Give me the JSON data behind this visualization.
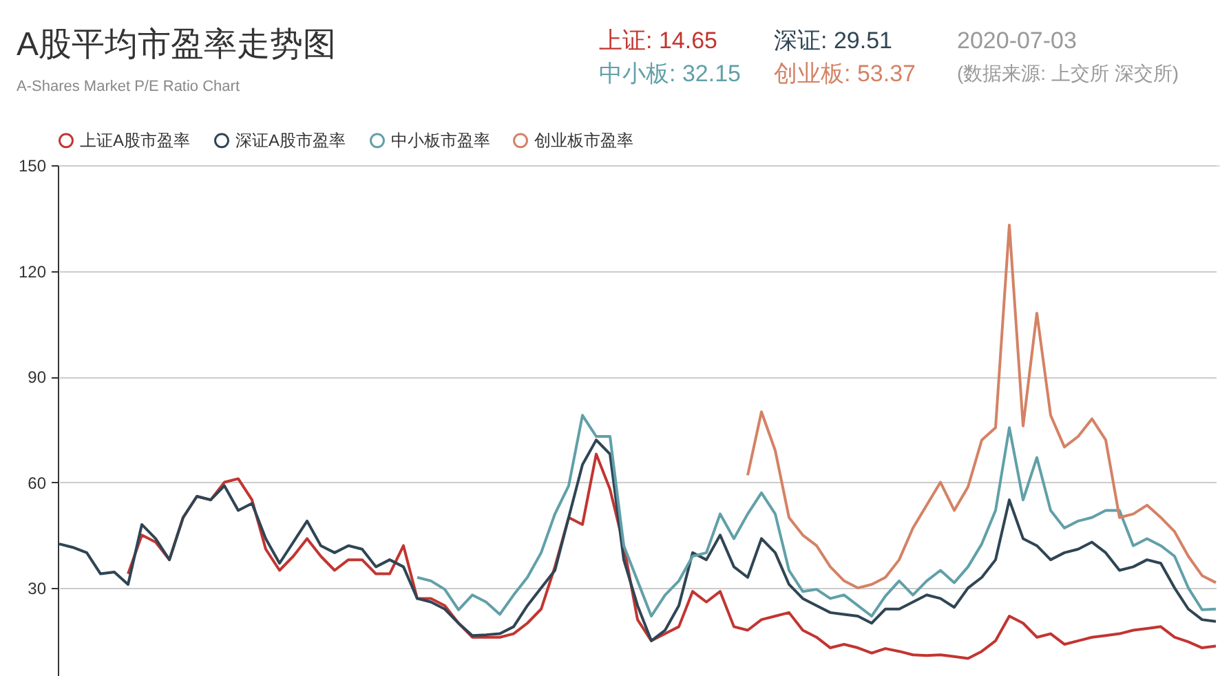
{
  "chart_data": {
    "type": "line",
    "title": "A股平均市盈率走势图",
    "subtitle": "A-Shares Market P/E Ratio Chart",
    "annotations": [
      "上证: 14.65",
      "深证: 29.51",
      "2020-07-03",
      "中小板: 32.15",
      "创业板: 53.37",
      "(数据来源: 上交所 深交所)"
    ],
    "categories": [
      null,
      null,
      null,
      null,
      null,
      null,
      null,
      null,
      null,
      null,
      null,
      null,
      null,
      null,
      null,
      null,
      null,
      null,
      null,
      null,
      null,
      null,
      null,
      null,
      null,
      null,
      null,
      null,
      null,
      null,
      null,
      null,
      null,
      null,
      null,
      null,
      null,
      null,
      null,
      null,
      null,
      null,
      null,
      null,
      null,
      null,
      null,
      null,
      null,
      null,
      null,
      null,
      null,
      null,
      null,
      null,
      null,
      null,
      null,
      null,
      null,
      null,
      null,
      null,
      null,
      null,
      null,
      null,
      null,
      null,
      null,
      null,
      null,
      null,
      null,
      null,
      null,
      null,
      null,
      null,
      null,
      null,
      null,
      null,
      null
    ],
    "ylim": [
      5,
      150
    ],
    "yticks": [
      30,
      60,
      90,
      120,
      150
    ],
    "grid": "y",
    "legend": "top",
    "line_style": "solid",
    "tick_labels": "y",
    "series": [
      {
        "name": "上证A股市盈率",
        "color": "#c23531",
        "values": [
          null,
          null,
          null,
          null,
          null,
          34,
          45,
          43,
          38,
          50,
          56,
          55,
          60,
          61,
          55,
          41,
          35,
          39,
          44,
          39,
          35,
          38,
          38,
          34,
          34,
          42,
          27,
          27,
          25,
          20,
          16,
          16,
          16,
          17,
          20,
          24,
          36,
          50,
          48,
          68,
          58,
          42,
          21,
          15,
          17,
          19,
          29,
          26,
          29,
          19,
          18,
          21,
          22,
          23,
          18,
          16,
          13,
          14,
          13,
          11.5,
          12.8,
          12,
          11,
          10.8,
          11,
          10.5,
          10,
          12,
          15,
          22,
          20,
          16,
          17,
          14,
          15,
          16,
          16.5,
          17,
          18,
          18.5,
          19,
          16,
          14.7,
          13,
          13.5
        ]
      },
      {
        "name": "深证A股市盈率",
        "color": "#2f4554",
        "values": [
          42.5,
          41.5,
          40,
          34,
          34.5,
          31,
          48,
          44,
          38,
          50,
          56,
          55,
          59,
          52,
          54,
          44,
          37,
          43,
          49,
          42,
          40,
          42,
          41,
          36,
          38,
          36,
          27,
          26,
          24,
          20,
          16.5,
          16.7,
          17,
          19,
          25,
          30,
          35,
          50,
          65,
          72,
          68,
          38,
          25,
          15,
          18,
          25,
          40,
          38,
          45,
          36,
          33,
          44,
          40,
          31,
          27,
          25,
          23,
          22.5,
          22,
          20,
          24,
          24,
          26,
          28,
          27,
          24.5,
          30,
          33,
          38,
          55,
          44,
          42,
          38,
          40,
          41,
          43,
          40,
          35,
          36,
          38,
          37,
          30,
          24,
          21,
          20.5
        ]
      },
      {
        "name": "中小板市盈率",
        "color": "#61a0a8",
        "values": [
          null,
          null,
          null,
          null,
          null,
          null,
          null,
          null,
          null,
          null,
          null,
          null,
          null,
          null,
          null,
          null,
          null,
          null,
          null,
          null,
          null,
          null,
          null,
          null,
          null,
          null,
          33,
          32,
          29.6,
          23.8,
          28,
          26,
          22.5,
          28,
          33,
          40,
          51,
          59,
          79,
          73,
          73,
          42,
          32,
          22,
          28,
          32,
          39,
          40,
          51,
          44,
          51,
          57,
          51,
          35,
          29,
          29.6,
          27,
          28,
          25,
          22,
          27.7,
          32,
          28,
          32,
          35,
          31.5,
          36,
          42.5,
          52,
          75.5,
          55,
          67,
          52,
          47,
          49,
          50,
          52,
          52,
          42,
          44,
          42,
          39,
          30,
          23.8,
          24
        ]
      },
      {
        "name": "创业板市盈率",
        "color": "#d48265",
        "values": [
          null,
          null,
          null,
          null,
          null,
          null,
          null,
          null,
          null,
          null,
          null,
          null,
          null,
          null,
          null,
          null,
          null,
          null,
          null,
          null,
          null,
          null,
          null,
          null,
          null,
          null,
          null,
          null,
          null,
          null,
          null,
          null,
          null,
          null,
          null,
          null,
          null,
          null,
          null,
          null,
          null,
          null,
          null,
          null,
          null,
          null,
          null,
          null,
          null,
          null,
          62,
          80,
          69,
          50,
          45,
          42,
          36,
          32,
          30,
          31,
          33,
          38,
          47,
          53.5,
          60,
          52,
          58.7,
          72,
          75.5,
          133,
          76,
          108,
          79,
          70,
          73,
          78,
          72,
          50,
          51,
          53.5,
          50,
          46,
          39,
          33.5,
          31.5
        ]
      }
    ]
  }
}
